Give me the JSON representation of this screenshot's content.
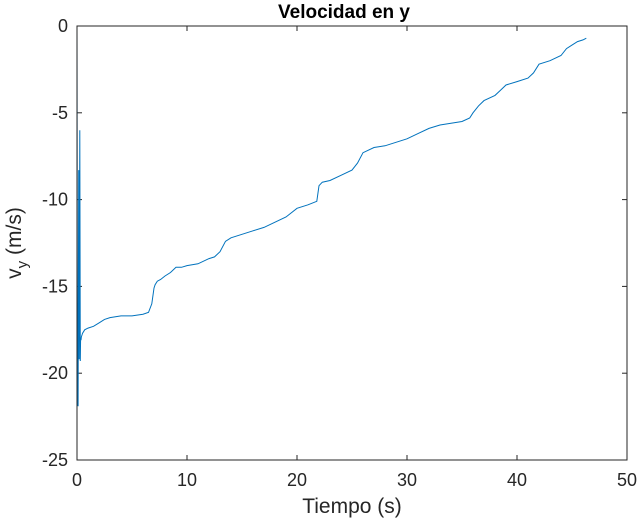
{
  "chart_data": {
    "type": "line",
    "title": "Velocidad en y",
    "xlabel": "Tiempo (s)",
    "ylabel_main": "v",
    "ylabel_sub": "y",
    "ylabel_units": " (m/s)",
    "xlim": [
      0,
      50
    ],
    "ylim": [
      -25,
      0
    ],
    "x_ticks": [
      0,
      10,
      20,
      30,
      40,
      50
    ],
    "y_ticks": [
      0,
      -5,
      -10,
      -15,
      -20,
      -25
    ],
    "grid": false,
    "line_color": "#0072BD",
    "series": [
      {
        "x": [
          0.0,
          0.05,
          0.1,
          0.12,
          0.15,
          0.2,
          0.25,
          0.3,
          0.33,
          0.36,
          0.4,
          0.45,
          0.5,
          0.7,
          1.0,
          1.5,
          2.0,
          2.5,
          3.0,
          4.0,
          5.0,
          6.0,
          6.5,
          6.8,
          7.0,
          7.1,
          7.3,
          7.6,
          8.0,
          8.5,
          9.0,
          9.5,
          10.0,
          11.0,
          12.0,
          12.5,
          13.0,
          13.5,
          14.0,
          15.0,
          16.0,
          17.0,
          18.0,
          19.0,
          20.0,
          21.0,
          21.8,
          22.0,
          22.3,
          23.0,
          24.0,
          25.0,
          25.5,
          26.0,
          27.0,
          28.0,
          29.0,
          30.0,
          31.0,
          32.0,
          33.0,
          34.0,
          35.0,
          35.7,
          36.0,
          36.5,
          37.0,
          38.0,
          38.5,
          39.0,
          40.0,
          41.0,
          41.5,
          42.0,
          43.0,
          44.0,
          44.5,
          45.0,
          45.5,
          46.0,
          46.3
        ],
        "values": [
          0.0,
          -21.7,
          -21.9,
          -17.8,
          -8.3,
          -19.2,
          -6.0,
          -19.3,
          -18.0,
          -18.1,
          -17.9,
          -17.8,
          -17.7,
          -17.5,
          -17.4,
          -17.3,
          -17.1,
          -16.9,
          -16.8,
          -16.7,
          -16.7,
          -16.6,
          -16.5,
          -16.0,
          -15.1,
          -14.9,
          -14.7,
          -14.6,
          -14.4,
          -14.2,
          -13.9,
          -13.9,
          -13.8,
          -13.7,
          -13.4,
          -13.3,
          -13.0,
          -12.4,
          -12.2,
          -12.0,
          -11.8,
          -11.6,
          -11.3,
          -11.0,
          -10.5,
          -10.3,
          -10.1,
          -9.2,
          -9.0,
          -8.9,
          -8.6,
          -8.3,
          -7.9,
          -7.3,
          -7.0,
          -6.9,
          -6.7,
          -6.5,
          -6.2,
          -5.9,
          -5.7,
          -5.6,
          -5.5,
          -5.3,
          -5.0,
          -4.6,
          -4.3,
          -4.0,
          -3.7,
          -3.4,
          -3.2,
          -3.0,
          -2.7,
          -2.2,
          -2.0,
          -1.7,
          -1.3,
          -1.1,
          -0.9,
          -0.8,
          -0.7
        ]
      }
    ]
  }
}
